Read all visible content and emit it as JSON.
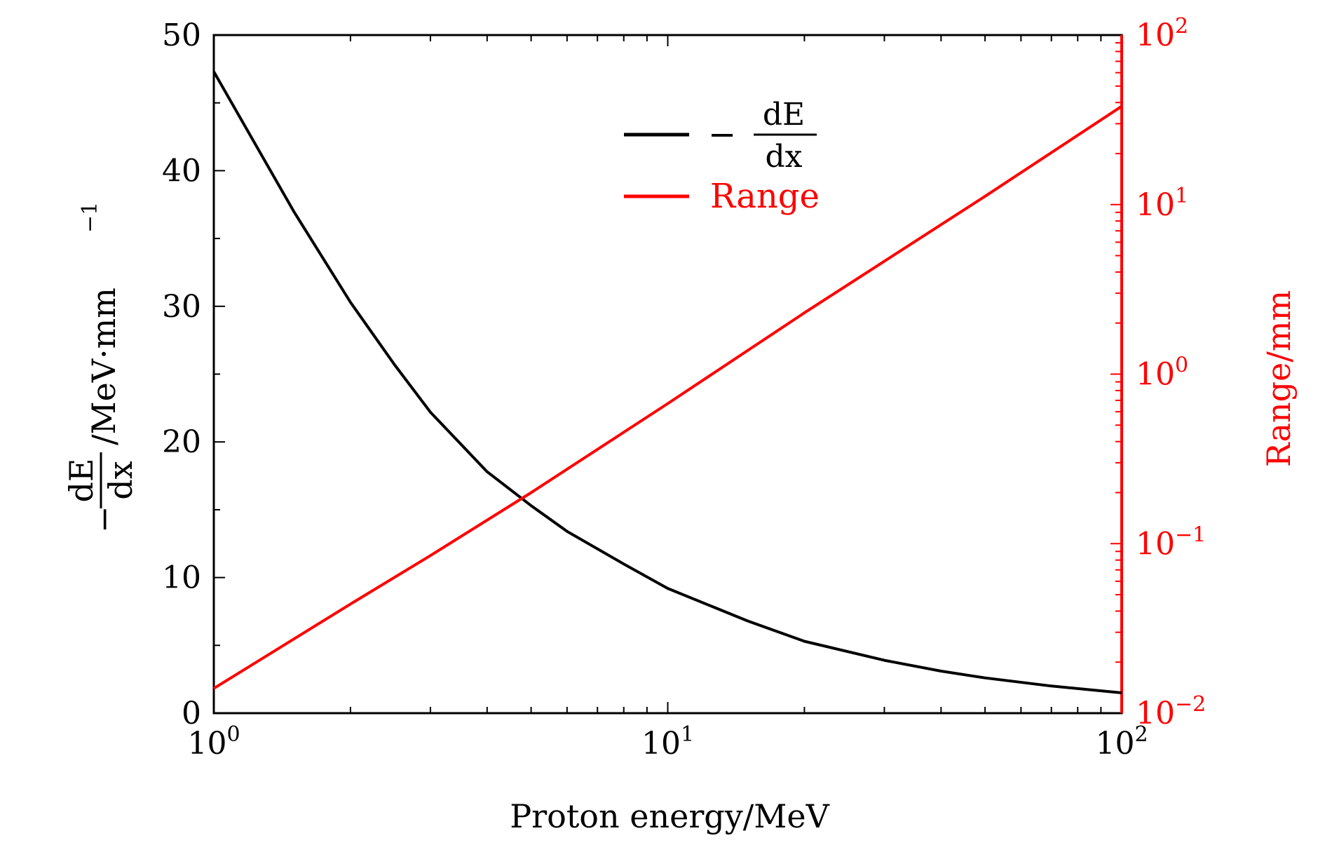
{
  "chart_data": {
    "type": "line",
    "xlabel": "Proton energy/MeV",
    "x_scale": "log",
    "xlim": [
      1,
      100
    ],
    "x_ticks": [
      {
        "base": "10",
        "exp": "0"
      },
      {
        "base": "10",
        "exp": "1"
      },
      {
        "base": "10",
        "exp": "2"
      }
    ],
    "left_axis": {
      "label_fraction_num": "dE",
      "label_fraction_den": "dx",
      "label_prefix": "−",
      "label_unit": "/MeV·mm",
      "label_unit_exp": "−1",
      "ylim": [
        0,
        50
      ],
      "ticks": [
        "0",
        "10",
        "20",
        "30",
        "40",
        "50"
      ],
      "color": "#000000"
    },
    "right_axis": {
      "label": "Range/mm",
      "scale": "log",
      "ylim": [
        0.01,
        100
      ],
      "ticks": [
        {
          "base": "10",
          "exp": "−2"
        },
        {
          "base": "10",
          "exp": "−1"
        },
        {
          "base": "10",
          "exp": "0"
        },
        {
          "base": "10",
          "exp": "1"
        },
        {
          "base": "10",
          "exp": "2"
        }
      ],
      "color": "#ff0000"
    },
    "series": [
      {
        "name": "dE/dx",
        "legend_prefix": "−",
        "legend_num": "dE",
        "legend_den": "dx",
        "axis": "left",
        "color": "#000000",
        "x": [
          1,
          1.5,
          2,
          2.5,
          3,
          4,
          5,
          6,
          8,
          10,
          15,
          20,
          30,
          40,
          50,
          70,
          100
        ],
        "y": [
          47.3,
          37.0,
          30.3,
          25.7,
          22.2,
          17.8,
          15.3,
          13.4,
          11.0,
          9.2,
          6.8,
          5.3,
          3.9,
          3.1,
          2.6,
          2.0,
          1.5
        ]
      },
      {
        "name": "Range",
        "axis": "right",
        "color": "#ff0000",
        "x": [
          1,
          2,
          3,
          5,
          10,
          20,
          50,
          100
        ],
        "y": [
          0.014,
          0.044,
          0.085,
          0.2,
          0.67,
          2.3,
          11.2,
          38
        ]
      }
    ]
  }
}
